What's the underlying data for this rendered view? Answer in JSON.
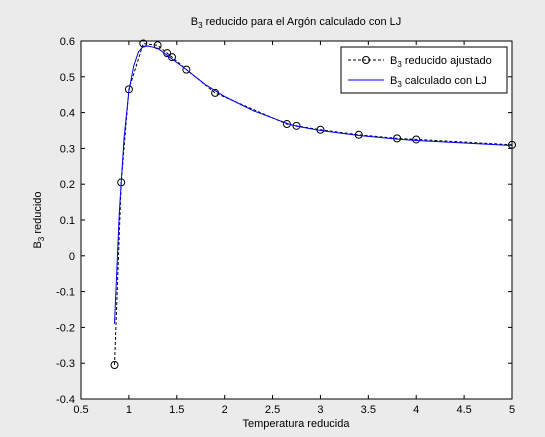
{
  "chart_data": {
    "type": "line",
    "title": {
      "main": "B",
      "sub": "3",
      "rest": " reducido para el Argón calculado con LJ"
    },
    "xlabel": "Temperatura reducida",
    "ylabel": {
      "main": "B",
      "sub": "3",
      "rest": " reducido"
    },
    "xlim": [
      0.5,
      5
    ],
    "ylim": [
      -0.4,
      0.6
    ],
    "xticks": [
      "0.5",
      "1",
      "1.5",
      "2",
      "2.5",
      "3",
      "3.5",
      "4",
      "4.5",
      "5"
    ],
    "yticks": [
      "-0.4",
      "-0.3",
      "-0.2",
      "-0.1",
      "0",
      "0.1",
      "0.2",
      "0.3",
      "0.4",
      "0.5",
      "0.6"
    ],
    "grid": false,
    "legend_position": "top-right",
    "series": [
      {
        "name": {
          "main": "B",
          "sub": "3",
          "rest": " reducido ajustado"
        },
        "style": "dashed-circle",
        "color": "#000000",
        "x": [
          0.85,
          0.92,
          1.0,
          1.15,
          1.3,
          1.4,
          1.45,
          1.6,
          1.9,
          2.65,
          2.75,
          3.0,
          3.4,
          3.8,
          4.0,
          5.0
        ],
        "y": [
          -0.305,
          0.205,
          0.465,
          0.593,
          0.588,
          0.566,
          0.555,
          0.52,
          0.455,
          0.368,
          0.363,
          0.352,
          0.338,
          0.328,
          0.325,
          0.31
        ]
      },
      {
        "name": {
          "main": "B",
          "sub": "3",
          "rest": " calculado con LJ"
        },
        "style": "solid",
        "color": "#0000ff",
        "x": [
          0.85,
          0.9,
          0.95,
          1.0,
          1.05,
          1.1,
          1.15,
          1.2,
          1.3,
          1.4,
          1.5,
          1.6,
          1.8,
          2.0,
          2.3,
          2.65,
          2.75,
          3.0,
          3.4,
          3.8,
          4.0,
          4.5,
          5.0
        ],
        "y": [
          -0.19,
          0.12,
          0.33,
          0.46,
          0.53,
          0.57,
          0.585,
          0.586,
          0.58,
          0.56,
          0.54,
          0.52,
          0.478,
          0.445,
          0.405,
          0.37,
          0.362,
          0.35,
          0.336,
          0.326,
          0.322,
          0.315,
          0.308
        ]
      }
    ]
  }
}
